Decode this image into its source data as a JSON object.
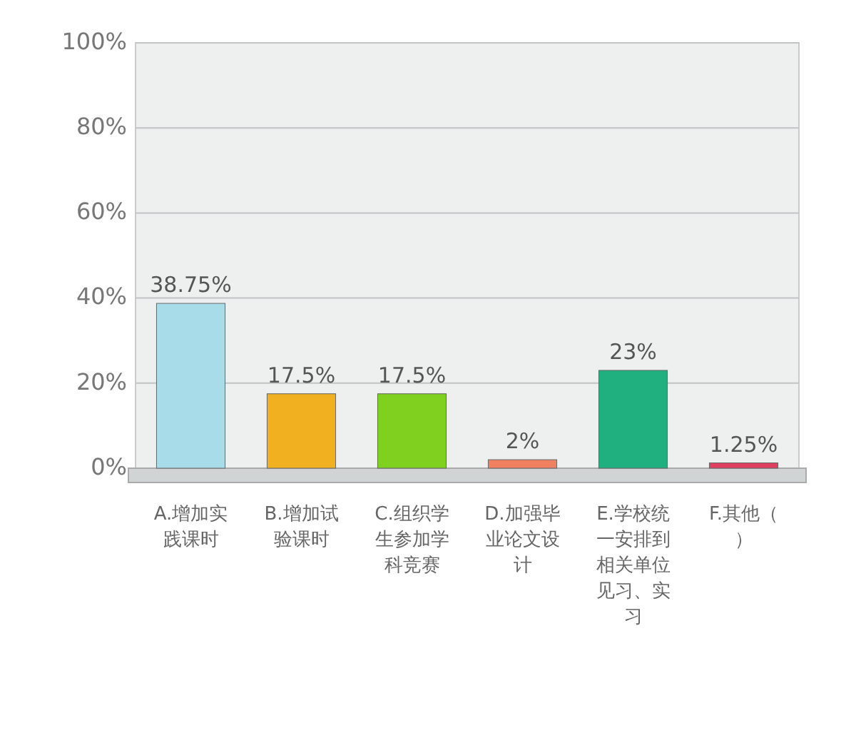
{
  "chart_data": {
    "type": "bar",
    "categories": [
      "A.增加实践课时",
      "B.增加试验课时",
      "C.组织学生参加学科竞赛",
      "D.加强毕业论文设计",
      "E.学校统一安排到相关单位见习、实习",
      "F.其他（）"
    ],
    "values": [
      38.75,
      17.5,
      17.5,
      2,
      23,
      1.25
    ],
    "value_labels": [
      "38.75%",
      "17.5%",
      "17.5%",
      "2%",
      "23%",
      "1.25%"
    ],
    "colors": [
      "#a8dce8",
      "#f0b020",
      "#80d020",
      "#f08060",
      "#20b080",
      "#e04060"
    ],
    "ylim": [
      0,
      100
    ],
    "yticks": [
      {
        "value": 0,
        "label": "0%"
      },
      {
        "value": 20,
        "label": "20%"
      },
      {
        "value": 40,
        "label": "40%"
      },
      {
        "value": 60,
        "label": "60%"
      },
      {
        "value": 80,
        "label": "80%"
      },
      {
        "value": 100,
        "label": "100%"
      }
    ],
    "grid": "y"
  }
}
